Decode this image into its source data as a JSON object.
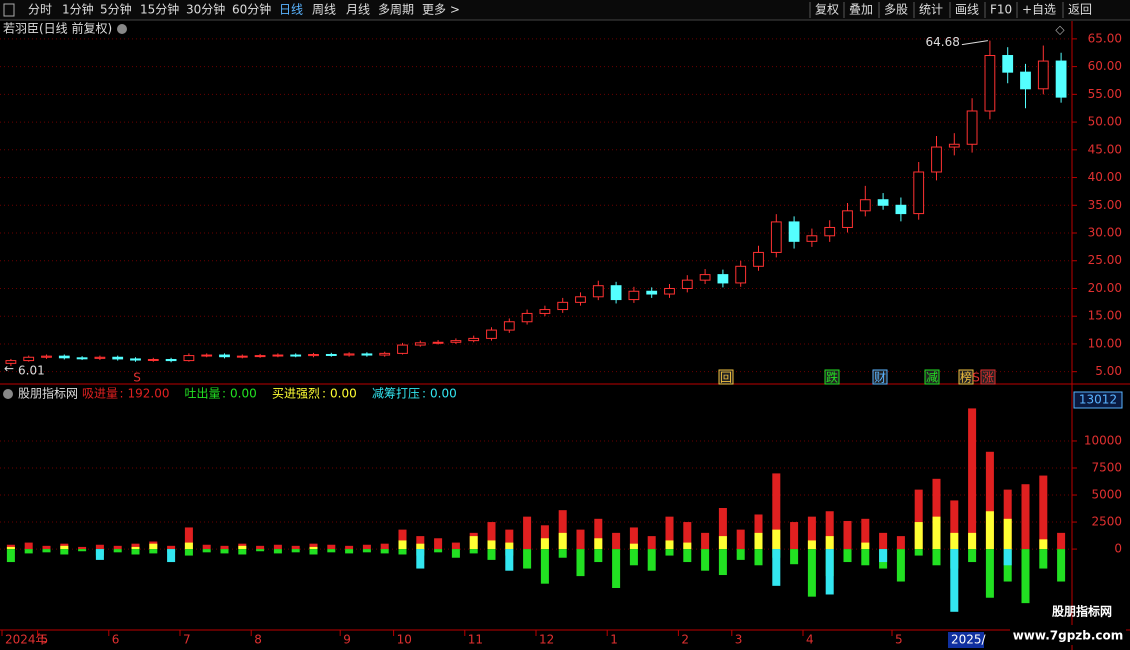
{
  "toolbar": {
    "left": [
      "分时",
      "1分钟",
      "5分钟",
      "15分钟",
      "30分钟",
      "60分钟",
      "日线",
      "周线",
      "月线",
      "多周期",
      "更多 >"
    ],
    "active": "日线",
    "right": [
      "复权",
      "叠加",
      "多股",
      "统计",
      "画线",
      "F10",
      "+自选",
      "返回"
    ]
  },
  "signals": [
    "S",
    "回",
    "跌",
    "财",
    "减",
    "榜",
    "S",
    "涨"
  ],
  "cursor_date": "2025/",
  "watermark": {
    "name": "股朋指标网",
    "url": "www.7gpzb.com"
  },
  "chart_data": [
    {
      "type": "candlestick",
      "title": "若羽臣(日线 前复权)",
      "categories": [
        "2024年",
        null,
        "5",
        null,
        null,
        null,
        "6",
        null,
        null,
        null,
        "7",
        null,
        null,
        null,
        "8",
        null,
        null,
        null,
        null,
        "9",
        null,
        null,
        "10",
        null,
        null,
        null,
        "11",
        null,
        null,
        null,
        "12",
        null,
        null,
        null,
        "1",
        null,
        null,
        null,
        "2",
        null,
        null,
        "3",
        null,
        null,
        null,
        "4",
        null,
        null,
        null,
        null,
        "5",
        null,
        null,
        null,
        null,
        null,
        null,
        null,
        null,
        null
      ],
      "open": [
        6.5,
        7.0,
        7.6,
        7.8,
        7.5,
        7.4,
        7.6,
        7.3,
        7.1,
        7.2,
        7.0,
        7.9,
        8.0,
        7.7,
        7.8,
        7.9,
        8.0,
        7.9,
        8.1,
        8.0,
        8.2,
        8.0,
        8.3,
        9.8,
        10.2,
        10.3,
        10.6,
        11.0,
        12.5,
        14.0,
        15.5,
        16.2,
        17.5,
        18.5,
        20.5,
        18.0,
        19.5,
        19.0,
        20.0,
        21.5,
        22.5,
        21.0,
        24.0,
        26.5,
        32.0,
        28.5,
        29.5,
        31.0,
        34.0,
        36.0,
        35.0,
        33.5,
        41.0,
        45.5,
        46.0,
        52.0,
        62.0,
        59.0,
        56.0,
        61.0
      ],
      "high": [
        7.3,
        7.9,
        8.1,
        8.1,
        7.8,
        7.9,
        7.9,
        7.6,
        7.5,
        7.5,
        8.3,
        8.3,
        8.3,
        8.1,
        8.2,
        8.3,
        8.3,
        8.4,
        8.4,
        8.5,
        8.5,
        8.6,
        10.2,
        10.6,
        10.7,
        11.0,
        11.5,
        13.0,
        14.6,
        16.2,
        16.9,
        18.3,
        19.3,
        21.4,
        21.2,
        20.3,
        20.2,
        20.8,
        22.4,
        23.5,
        23.4,
        25.0,
        27.7,
        33.4,
        33.0,
        30.8,
        32.3,
        35.4,
        38.5,
        37.2,
        36.4,
        42.8,
        47.5,
        48.0,
        54.3,
        64.68,
        63.5,
        60.5,
        63.8,
        62.5
      ],
      "low": [
        6.01,
        6.8,
        7.3,
        7.2,
        7.1,
        7.1,
        7.0,
        6.8,
        6.8,
        6.7,
        6.8,
        7.6,
        7.4,
        7.4,
        7.5,
        7.6,
        7.6,
        7.6,
        7.7,
        7.7,
        7.7,
        7.7,
        8.1,
        9.5,
        9.9,
        10.0,
        10.3,
        10.6,
        12.0,
        13.5,
        15.0,
        15.6,
        16.9,
        17.9,
        17.3,
        17.4,
        18.3,
        18.3,
        19.3,
        20.8,
        20.2,
        20.3,
        23.2,
        25.6,
        27.2,
        27.5,
        28.4,
        30.1,
        33.0,
        34.2,
        32.1,
        32.4,
        39.5,
        44.0,
        44.5,
        50.5,
        57.0,
        52.5,
        55.0,
        53.5
      ],
      "close": [
        7.0,
        7.6,
        7.8,
        7.5,
        7.4,
        7.6,
        7.3,
        7.1,
        7.2,
        7.0,
        7.9,
        8.0,
        7.7,
        7.8,
        7.9,
        8.0,
        7.9,
        8.1,
        8.0,
        8.2,
        8.0,
        8.3,
        9.8,
        10.2,
        10.3,
        10.6,
        11.0,
        12.5,
        14.0,
        15.5,
        16.2,
        17.5,
        18.5,
        20.5,
        18.0,
        19.5,
        19.0,
        20.0,
        21.5,
        22.5,
        21.0,
        24.0,
        26.5,
        32.0,
        28.5,
        29.5,
        31.0,
        34.0,
        36.0,
        35.0,
        33.5,
        41.0,
        45.5,
        46.0,
        52.0,
        62.0,
        59.0,
        56.0,
        61.0,
        54.5
      ],
      "up_color": "#ff3232",
      "down_color": "#54ffff",
      "ylim": [
        3.5,
        66.6
      ],
      "yticks": [
        {
          "value": 5,
          "label": "5.00"
        },
        {
          "value": 10,
          "label": "10.00"
        },
        {
          "value": 15,
          "label": "15.00"
        },
        {
          "value": 20,
          "label": "20.00"
        },
        {
          "value": 25,
          "label": "25.00"
        },
        {
          "value": 30,
          "label": "30.00"
        },
        {
          "value": 35,
          "label": "35.00"
        },
        {
          "value": 40,
          "label": "40.00"
        },
        {
          "value": 45,
          "label": "45.00"
        },
        {
          "value": 50,
          "label": "50.00"
        },
        {
          "value": 55,
          "label": "55.00"
        },
        {
          "value": 60,
          "label": "60.00"
        },
        {
          "value": 65,
          "label": "65.00"
        }
      ],
      "grid": true
    },
    {
      "type": "bar",
      "title": "股朋指标网",
      "max_label": 13012,
      "series": [
        {
          "name": "吸进量",
          "legend_value": "192.00",
          "color": "#e02020",
          "values": [
            400,
            600,
            300,
            500,
            200,
            400,
            300,
            500,
            700,
            300,
            2000,
            400,
            300,
            500,
            300,
            400,
            300,
            500,
            400,
            300,
            400,
            500,
            1800,
            1200,
            1000,
            600,
            1500,
            2500,
            1800,
            3000,
            2200,
            3600,
            1800,
            2800,
            1500,
            2000,
            1200,
            3000,
            2500,
            1500,
            3800,
            1800,
            3200,
            7000,
            2500,
            3000,
            3500,
            2600,
            2800,
            1500,
            1200,
            5500,
            6500,
            4500,
            13012,
            9000,
            5500,
            6000,
            6800,
            1500
          ]
        },
        {
          "name": "吐出量",
          "legend_value": "0.00",
          "color": "#22e022",
          "values": [
            -1200,
            -400,
            -300,
            -500,
            -200,
            -600,
            -300,
            -500,
            -400,
            -300,
            -600,
            -300,
            -400,
            -500,
            -200,
            -400,
            -300,
            -500,
            -300,
            -400,
            -300,
            -400,
            -500,
            -600,
            -300,
            -800,
            -400,
            -1000,
            -600,
            -1800,
            -3200,
            -800,
            -2500,
            -1200,
            -3600,
            -1500,
            -2000,
            -600,
            -1200,
            -2000,
            -2400,
            -1000,
            -1500,
            -800,
            -1400,
            -4400,
            -2500,
            -1200,
            -1500,
            -1800,
            -3000,
            -600,
            -1500,
            -1800,
            -1200,
            -4500,
            -3000,
            -5000,
            -1800,
            -3000
          ]
        },
        {
          "name": "买进强烈",
          "legend_value": "0.00",
          "color": "#ffff33",
          "values": [
            200,
            0,
            0,
            300,
            0,
            0,
            0,
            200,
            500,
            0,
            600,
            0,
            0,
            300,
            0,
            0,
            0,
            200,
            0,
            0,
            0,
            0,
            800,
            500,
            0,
            0,
            1200,
            800,
            600,
            0,
            1000,
            1500,
            0,
            1000,
            0,
            500,
            0,
            800,
            600,
            0,
            1200,
            0,
            1500,
            1800,
            0,
            800,
            1200,
            0,
            600,
            0,
            0,
            2500,
            3000,
            1500,
            1500,
            3500,
            2800,
            0,
            900,
            0
          ]
        },
        {
          "name": "减筹打压",
          "legend_value": "0.00",
          "color": "#33e6f0",
          "values": [
            0,
            0,
            0,
            0,
            0,
            -1000,
            0,
            0,
            0,
            -1200,
            0,
            0,
            0,
            0,
            0,
            0,
            0,
            0,
            0,
            0,
            0,
            0,
            0,
            -1800,
            0,
            0,
            0,
            0,
            -2000,
            0,
            0,
            0,
            0,
            0,
            0,
            0,
            0,
            0,
            0,
            0,
            0,
            0,
            0,
            -3400,
            0,
            0,
            -4200,
            0,
            0,
            -1200,
            0,
            0,
            0,
            -5800,
            0,
            0,
            -1500,
            0,
            0,
            0
          ]
        }
      ],
      "ylim": [
        -7300,
        14900
      ],
      "yticks": [
        0,
        2500,
        5000,
        7500,
        10000
      ],
      "grid": true
    }
  ]
}
